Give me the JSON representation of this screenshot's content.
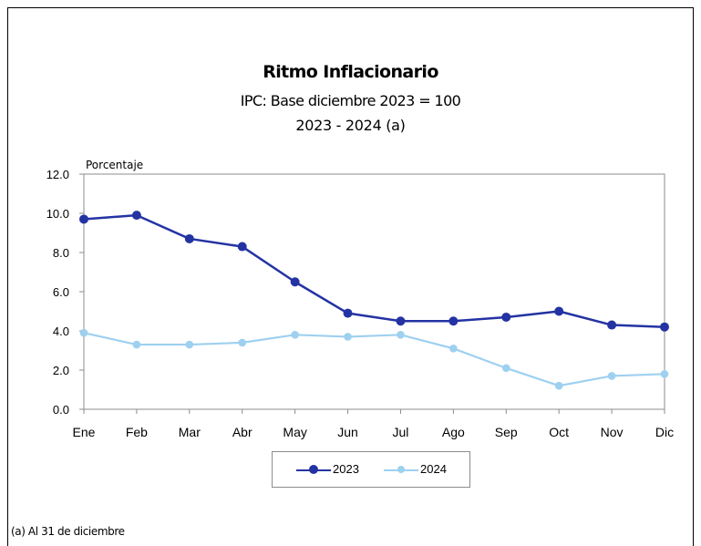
{
  "title": "Ritmo Inflacionario",
  "subtitle": "IPC: Base diciembre 2023 = 100",
  "period": "2023 - 2024 (a)",
  "footnote": "(a) Al 31 de diciembre",
  "chart_data": {
    "type": "line",
    "title": "Ritmo Inflacionario",
    "ylabel": "Porcentaje",
    "xlabel": "",
    "categories": [
      "Ene",
      "Feb",
      "Mar",
      "Abr",
      "May",
      "Jun",
      "Jul",
      "Ago",
      "Sep",
      "Oct",
      "Nov",
      "Dic"
    ],
    "ylim": [
      0,
      12
    ],
    "yticks": [
      "0.0",
      "2.0",
      "4.0",
      "6.0",
      "8.0",
      "10.0",
      "12.0"
    ],
    "grid": false,
    "legend_position": "bottom",
    "series": [
      {
        "name": "2023",
        "color": "#2433a3",
        "values": [
          9.7,
          9.9,
          8.7,
          8.3,
          6.5,
          4.9,
          4.5,
          4.5,
          4.7,
          5.0,
          4.3,
          4.2
        ]
      },
      {
        "name": "2024",
        "color": "#9ed0f0",
        "values": [
          3.9,
          3.3,
          3.3,
          3.4,
          3.8,
          3.7,
          3.8,
          3.1,
          2.1,
          1.2,
          1.7,
          1.8
        ]
      }
    ]
  }
}
